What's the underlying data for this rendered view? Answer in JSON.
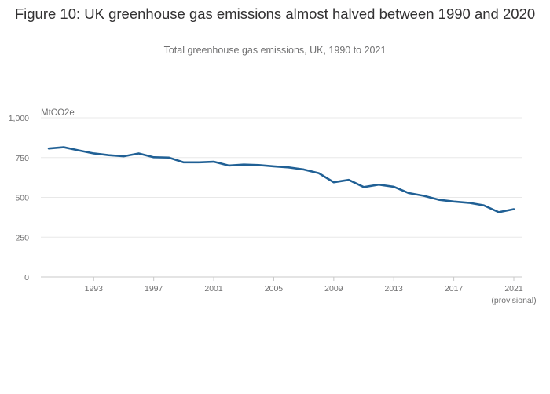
{
  "chart_data": {
    "type": "line",
    "title": "Figure 10: UK greenhouse gas emissions almost halved between 1990 and 2020",
    "subtitle": "Total greenhouse gas emissions, UK, 1990 to 2021",
    "ylabel": "MtCO2e",
    "xlabel": "",
    "ylim": [
      0,
      1000
    ],
    "xlim": [
      1990,
      2021
    ],
    "yticks": [
      0,
      250,
      500,
      750,
      1000
    ],
    "ytick_labels": [
      "0",
      "250",
      "500",
      "750",
      "1,000"
    ],
    "xticks": [
      1993,
      1997,
      2001,
      2005,
      2009,
      2013,
      2017,
      2021
    ],
    "xtick_labels": [
      "1993",
      "1997",
      "2001",
      "2005",
      "2009",
      "2013",
      "2017",
      "2021"
    ],
    "xtick_note": "(provisional)",
    "grid": true,
    "series": [
      {
        "name": "Total greenhouse gas emissions",
        "color": "#206095",
        "x": [
          1990,
          1991,
          1992,
          1993,
          1994,
          1995,
          1996,
          1997,
          1998,
          1999,
          2000,
          2001,
          2002,
          2003,
          2004,
          2005,
          2006,
          2007,
          2008,
          2009,
          2010,
          2011,
          2012,
          2013,
          2014,
          2015,
          2016,
          2017,
          2018,
          2019,
          2020,
          2021
        ],
        "values": [
          807,
          815,
          795,
          776,
          765,
          758,
          776,
          752,
          750,
          720,
          720,
          724,
          700,
          706,
          703,
          695,
          688,
          675,
          652,
          595,
          610,
          565,
          580,
          567,
          527,
          510,
          485,
          474,
          466,
          450,
          407,
          426
        ]
      }
    ]
  }
}
